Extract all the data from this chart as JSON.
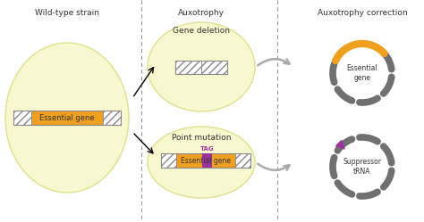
{
  "title_left": "Wild-type strain",
  "title_mid": "Auxotrophy",
  "title_right": "Auxotrophy correction",
  "label_gene_deletion": "Gene deletion",
  "label_point_mutation": "Point mutation",
  "label_essential_gene_top": "Essential\ngene",
  "label_essential_gene_bottom": "Suppressor\ntRNA",
  "label_essential_gene_bar": "Essential gene",
  "label_tag": "TAG",
  "bg_color": "#ffffff",
  "ellipse_color": "#f8f8d0",
  "ellipse_edge": "#e0e090",
  "orange_color": "#f0a020",
  "gray_color": "#909090",
  "gray_dark": "#707070",
  "purple_color": "#993399",
  "dashed_line_color": "#999999",
  "text_color": "#333333",
  "hatch_fc": "#ffffff",
  "hatch_ec": "#888888"
}
